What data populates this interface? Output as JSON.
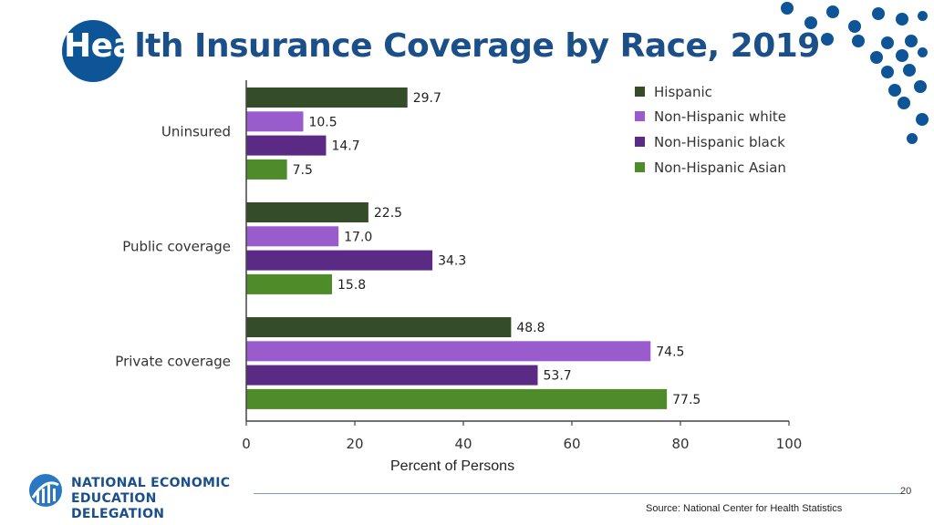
{
  "title": "Health Insurance Coverage by Race, 2019",
  "title_first_part": "Hea",
  "title_rest": "lth Insurance Coverage by Race, 2019",
  "colors": {
    "brand": "#0d5596",
    "hispanic": "#344c27",
    "nh_white": "#9a5ccc",
    "nh_black": "#5b2a84",
    "nh_asian": "#4e8c2a"
  },
  "chart_data": {
    "type": "bar",
    "orientation": "horizontal",
    "title": "Health Insurance Coverage by Race, 2019",
    "xlabel": "Percent of Persons",
    "ylabel": "",
    "xlim": [
      0,
      100
    ],
    "xticks": [
      0,
      20,
      40,
      60,
      80,
      100
    ],
    "categories": [
      "Uninsured",
      "Public coverage",
      "Private coverage"
    ],
    "series": [
      {
        "name": "Hispanic",
        "color": "#344c27",
        "values": [
          29.7,
          22.5,
          48.8
        ],
        "labels": [
          "29.7",
          "22.5",
          "48.8"
        ]
      },
      {
        "name": "Non-Hispanic white",
        "color": "#9a5ccc",
        "values": [
          10.5,
          17.0,
          74.5
        ],
        "labels": [
          "10.5",
          "17.0",
          "74.5"
        ]
      },
      {
        "name": "Non-Hispanic  black",
        "color": "#5b2a84",
        "values": [
          14.7,
          34.3,
          53.7
        ],
        "labels": [
          "14.7",
          "34.3",
          "53.7"
        ]
      },
      {
        "name": "Non-Hispanic Asian",
        "color": "#4e8c2a",
        "values": [
          7.5,
          15.8,
          77.5
        ],
        "labels": [
          "7.5",
          "15.8",
          "77.5"
        ]
      }
    ],
    "legend_position": "top-right"
  },
  "footer": {
    "logo_line1": "NATIONAL ECONOMIC",
    "logo_line2": "EDUCATION DELEGATION",
    "page_number": "20",
    "source": "Source: National Center for Health Statistics"
  }
}
